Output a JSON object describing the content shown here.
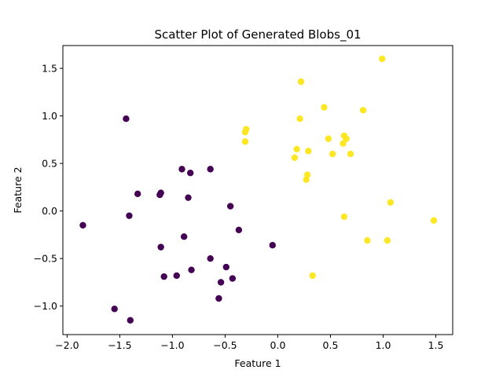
{
  "chart_data": {
    "type": "scatter",
    "title": "Scatter Plot of Generated Blobs_01",
    "xlabel": "Feature 1",
    "ylabel": "Feature 2",
    "xlim": [
      -2.04,
      1.66
    ],
    "ylim": [
      -1.3,
      1.74
    ],
    "xticks": [
      -2.0,
      -1.5,
      -1.0,
      -0.5,
      0.0,
      0.5,
      1.0,
      1.5
    ],
    "xtick_labels": [
      "−2.0",
      "−1.5",
      "−1.0",
      "−0.5",
      "0.0",
      "0.5",
      "1.0",
      "1.5"
    ],
    "yticks": [
      -1.0,
      -0.5,
      0.0,
      0.5,
      1.0,
      1.5
    ],
    "ytick_labels": [
      "−1.0",
      "−0.5",
      "0.0",
      "0.5",
      "1.0",
      "1.5"
    ],
    "grid": false,
    "series": [
      {
        "color": "#440154",
        "points": [
          [
            -1.44,
            0.97
          ],
          [
            -0.91,
            0.44
          ],
          [
            -0.64,
            0.44
          ],
          [
            -0.83,
            0.4
          ],
          [
            -1.33,
            0.18
          ],
          [
            -1.11,
            0.19
          ],
          [
            -1.12,
            0.17
          ],
          [
            -0.85,
            0.14
          ],
          [
            -0.45,
            0.05
          ],
          [
            -1.41,
            -0.05
          ],
          [
            -1.85,
            -0.15
          ],
          [
            -0.37,
            -0.2
          ],
          [
            -0.89,
            -0.27
          ],
          [
            -0.05,
            -0.36
          ],
          [
            -1.11,
            -0.38
          ],
          [
            -0.64,
            -0.5
          ],
          [
            -0.49,
            -0.59
          ],
          [
            -0.82,
            -0.62
          ],
          [
            -1.08,
            -0.69
          ],
          [
            -0.96,
            -0.68
          ],
          [
            -0.43,
            -0.71
          ],
          [
            -0.54,
            -0.75
          ],
          [
            -0.56,
            -0.92
          ],
          [
            -1.55,
            -1.03
          ],
          [
            -1.4,
            -1.15
          ]
        ]
      },
      {
        "color": "#fde725",
        "points": [
          [
            0.99,
            1.6
          ],
          [
            0.22,
            1.36
          ],
          [
            0.44,
            1.09
          ],
          [
            0.81,
            1.06
          ],
          [
            0.21,
            0.97
          ],
          [
            -0.3,
            0.86
          ],
          [
            -0.31,
            0.83
          ],
          [
            0.48,
            0.76
          ],
          [
            0.63,
            0.79
          ],
          [
            0.65,
            0.76
          ],
          [
            0.62,
            0.71
          ],
          [
            -0.31,
            0.73
          ],
          [
            0.18,
            0.65
          ],
          [
            0.29,
            0.63
          ],
          [
            0.52,
            0.6
          ],
          [
            0.69,
            0.6
          ],
          [
            0.16,
            0.56
          ],
          [
            0.28,
            0.38
          ],
          [
            0.27,
            0.33
          ],
          [
            1.07,
            0.09
          ],
          [
            0.63,
            -0.06
          ],
          [
            1.48,
            -0.1
          ],
          [
            0.85,
            -0.31
          ],
          [
            1.04,
            -0.31
          ],
          [
            0.33,
            -0.68
          ]
        ]
      }
    ]
  }
}
